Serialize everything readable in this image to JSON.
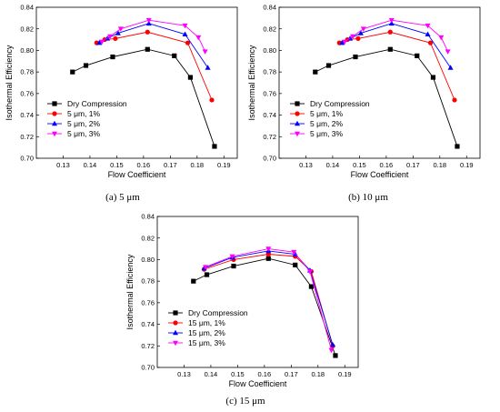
{
  "chart_data": [
    {
      "type": "line",
      "caption": "(a) 5 μm",
      "xlabel": "Flow Coefficient",
      "ylabel": "Isothermal Efficiency",
      "xlim": [
        0.12,
        0.195
      ],
      "ylim": [
        0.7,
        0.84
      ],
      "xticks": [
        "0.13",
        "0.14",
        "0.15",
        "0.16",
        "0.17",
        "0.18",
        "0.19"
      ],
      "yticks": [
        "0.70",
        "0.72",
        "0.74",
        "0.76",
        "0.78",
        "0.80",
        "0.82",
        "0.84"
      ],
      "legend_position": "lower-left",
      "series": [
        {
          "name": "Dry Compression",
          "color": "#000000",
          "marker": "square",
          "x": [
            0.1335,
            0.1385,
            0.1485,
            0.1615,
            0.1715,
            0.1775,
            0.1865
          ],
          "y": [
            0.78,
            0.786,
            0.794,
            0.801,
            0.795,
            0.775,
            0.711
          ]
        },
        {
          "name": "5 μm, 1%",
          "color": "#ff0000",
          "marker": "circle",
          "x": [
            0.1425,
            0.1455,
            0.1495,
            0.1615,
            0.1765,
            0.1855
          ],
          "y": [
            0.807,
            0.81,
            0.811,
            0.817,
            0.807,
            0.754
          ]
        },
        {
          "name": "5 μm, 2%",
          "color": "#0000ff",
          "marker": "triangle-up",
          "x": [
            0.1435,
            0.1465,
            0.1505,
            0.162,
            0.1755,
            0.184
          ],
          "y": [
            0.807,
            0.811,
            0.816,
            0.825,
            0.815,
            0.784
          ]
        },
        {
          "name": "5 μm, 3%",
          "color": "#ff00ff",
          "marker": "triangle-down",
          "x": [
            0.1445,
            0.1475,
            0.1515,
            0.162,
            0.1755,
            0.1805,
            0.183
          ],
          "y": [
            0.808,
            0.813,
            0.82,
            0.828,
            0.823,
            0.812,
            0.799
          ]
        }
      ]
    },
    {
      "type": "line",
      "caption": "(b) 10 μm",
      "xlabel": "Flow Coefficient",
      "ylabel": "Isothermal Efficiency",
      "xlim": [
        0.12,
        0.195
      ],
      "ylim": [
        0.7,
        0.84
      ],
      "xticks": [
        "0.13",
        "0.14",
        "0.15",
        "0.16",
        "0.17",
        "0.18",
        "0.19"
      ],
      "yticks": [
        "0.70",
        "0.72",
        "0.74",
        "0.76",
        "0.78",
        "0.80",
        "0.82",
        "0.84"
      ],
      "legend_position": "lower-left",
      "series": [
        {
          "name": "Dry Compression",
          "color": "#000000",
          "marker": "square",
          "x": [
            0.1335,
            0.1385,
            0.1485,
            0.1615,
            0.1715,
            0.1775,
            0.1865
          ],
          "y": [
            0.78,
            0.786,
            0.794,
            0.801,
            0.795,
            0.775,
            0.711
          ]
        },
        {
          "name": "5 μm, 1%",
          "color": "#ff0000",
          "marker": "circle",
          "x": [
            0.1425,
            0.1455,
            0.1495,
            0.1615,
            0.1765,
            0.1855
          ],
          "y": [
            0.807,
            0.81,
            0.811,
            0.817,
            0.807,
            0.754
          ]
        },
        {
          "name": "5 μm, 2%",
          "color": "#0000ff",
          "marker": "triangle-up",
          "x": [
            0.1435,
            0.1465,
            0.1505,
            0.162,
            0.1755,
            0.184
          ],
          "y": [
            0.807,
            0.811,
            0.816,
            0.825,
            0.815,
            0.784
          ]
        },
        {
          "name": "5 μm, 3%",
          "color": "#ff00ff",
          "marker": "triangle-down",
          "x": [
            0.1445,
            0.1475,
            0.1515,
            0.162,
            0.1755,
            0.1805,
            0.183
          ],
          "y": [
            0.808,
            0.813,
            0.82,
            0.828,
            0.823,
            0.812,
            0.799
          ]
        }
      ]
    },
    {
      "type": "line",
      "caption": "(c) 15 μm",
      "xlabel": "Flow Coefficient",
      "ylabel": "Isothermal Efficiency",
      "xlim": [
        0.12,
        0.195
      ],
      "ylim": [
        0.7,
        0.84
      ],
      "xticks": [
        "0.13",
        "0.14",
        "0.15",
        "0.16",
        "0.17",
        "0.18",
        "0.19"
      ],
      "yticks": [
        "0.70",
        "0.72",
        "0.74",
        "0.76",
        "0.78",
        "0.80",
        "0.82",
        "0.84"
      ],
      "legend_position": "lower-left",
      "series": [
        {
          "name": "Dry Compression",
          "color": "#000000",
          "marker": "square",
          "x": [
            0.1335,
            0.1385,
            0.1485,
            0.1615,
            0.1715,
            0.1775,
            0.1865
          ],
          "y": [
            0.78,
            0.786,
            0.794,
            0.801,
            0.795,
            0.775,
            0.711
          ]
        },
        {
          "name": "15 μm, 1%",
          "color": "#ff0000",
          "marker": "circle",
          "x": [
            0.1375,
            0.1485,
            0.1615,
            0.1715,
            0.1775,
            0.1855
          ],
          "y": [
            0.791,
            0.8,
            0.805,
            0.803,
            0.789,
            0.72
          ]
        },
        {
          "name": "15 μm, 2%",
          "color": "#0000ff",
          "marker": "triangle-up",
          "x": [
            0.1375,
            0.148,
            0.1615,
            0.1715,
            0.177,
            0.1855
          ],
          "y": [
            0.792,
            0.802,
            0.808,
            0.805,
            0.79,
            0.721
          ]
        },
        {
          "name": "15 μm, 3%",
          "color": "#ff00ff",
          "marker": "triangle-down",
          "x": [
            0.138,
            0.148,
            0.1615,
            0.171,
            0.177,
            0.185
          ],
          "y": [
            0.793,
            0.803,
            0.81,
            0.807,
            0.789,
            0.716
          ]
        }
      ]
    }
  ]
}
